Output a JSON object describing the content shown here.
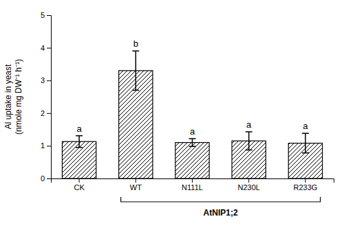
{
  "chart_data": {
    "type": "bar",
    "categories": [
      "CK",
      "WT",
      "N111L",
      "N230L",
      "R233G"
    ],
    "values": [
      1.13,
      3.3,
      1.1,
      1.15,
      1.08
    ],
    "errors": [
      0.18,
      0.6,
      0.12,
      0.28,
      0.3
    ],
    "letters": [
      "a",
      "b",
      "a",
      "a",
      "a"
    ],
    "ylabel": [
      "Al uptake in yeast",
      "(nmole mg DW⁻¹ h⁻¹)"
    ],
    "ylim": [
      0,
      5
    ],
    "yticks": [
      0,
      1,
      2,
      3,
      4,
      5
    ],
    "color": "#ffffff",
    "grid": false,
    "annotations": [
      {
        "text": "AtNIP1;2",
        "start": "WT",
        "end": "R233G"
      }
    ]
  }
}
